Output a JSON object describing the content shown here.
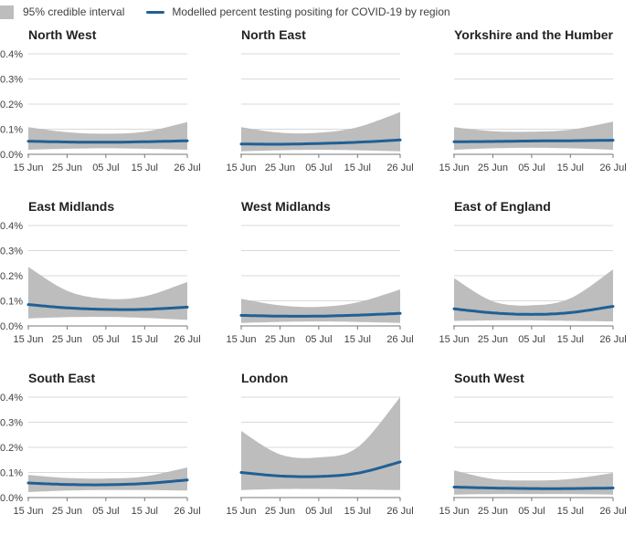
{
  "legend": {
    "band_label": "95% credible interval",
    "line_label": "Modelled percent testing positing for COVID-19 by region"
  },
  "colors": {
    "band": "#bdbdbd",
    "line": "#206095",
    "grid": "#d9d9d9",
    "axis": "#777777"
  },
  "chart_data": [
    {
      "type": "area",
      "title": "North West",
      "x_ticks": [
        "15 Jun",
        "25 Jun",
        "05 Jul",
        "15 Jul",
        "26 Jul"
      ],
      "y_ticks": [
        "0.0%",
        "0.1%",
        "0.2%",
        "0.3%",
        "0.4%"
      ],
      "ylim": [
        0,
        0.4
      ],
      "show_y_axis": true,
      "x": [
        0,
        10,
        20,
        30,
        41
      ],
      "estimate": [
        0.052,
        0.049,
        0.048,
        0.05,
        0.054
      ],
      "lower": [
        0.018,
        0.022,
        0.024,
        0.022,
        0.018
      ],
      "upper": [
        0.108,
        0.088,
        0.082,
        0.09,
        0.128
      ]
    },
    {
      "type": "area",
      "title": "North East",
      "x_ticks": [
        "15 Jun",
        "25 Jun",
        "05 Jul",
        "15 Jul",
        "26 Jul"
      ],
      "y_ticks": [],
      "ylim": [
        0,
        0.4
      ],
      "show_y_axis": false,
      "x": [
        0,
        10,
        20,
        30,
        41
      ],
      "estimate": [
        0.041,
        0.04,
        0.043,
        0.048,
        0.057
      ],
      "lower": [
        0.012,
        0.016,
        0.018,
        0.016,
        0.012
      ],
      "upper": [
        0.108,
        0.086,
        0.086,
        0.108,
        0.168
      ]
    },
    {
      "type": "area",
      "title": "Yorkshire and the Humber",
      "x_ticks": [
        "15 Jun",
        "25 Jun",
        "05 Jul",
        "15 Jul",
        "26 Jul"
      ],
      "y_ticks": [],
      "ylim": [
        0,
        0.4
      ],
      "show_y_axis": false,
      "x": [
        0,
        10,
        20,
        30,
        41
      ],
      "estimate": [
        0.05,
        0.051,
        0.053,
        0.054,
        0.056
      ],
      "lower": [
        0.018,
        0.024,
        0.026,
        0.024,
        0.018
      ],
      "upper": [
        0.108,
        0.092,
        0.09,
        0.098,
        0.13
      ]
    },
    {
      "type": "area",
      "title": "East Midlands",
      "x_ticks": [
        "15 Jun",
        "25 Jun",
        "05 Jul",
        "15 Jul",
        "26 Jul"
      ],
      "y_ticks": [
        "0.0%",
        "0.1%",
        "0.2%",
        "0.3%",
        "0.4%"
      ],
      "ylim": [
        0,
        0.4
      ],
      "show_y_axis": true,
      "x": [
        0,
        10,
        20,
        30,
        41
      ],
      "estimate": [
        0.085,
        0.072,
        0.066,
        0.066,
        0.075
      ],
      "lower": [
        0.03,
        0.035,
        0.036,
        0.032,
        0.024
      ],
      "upper": [
        0.235,
        0.14,
        0.108,
        0.118,
        0.175
      ]
    },
    {
      "type": "area",
      "title": "West Midlands",
      "x_ticks": [
        "15 Jun",
        "25 Jun",
        "05 Jul",
        "15 Jul",
        "26 Jul"
      ],
      "y_ticks": [],
      "ylim": [
        0,
        0.4
      ],
      "show_y_axis": false,
      "x": [
        0,
        10,
        20,
        30,
        41
      ],
      "estimate": [
        0.042,
        0.039,
        0.039,
        0.043,
        0.05
      ],
      "lower": [
        0.012,
        0.016,
        0.018,
        0.016,
        0.012
      ],
      "upper": [
        0.108,
        0.082,
        0.076,
        0.094,
        0.145
      ]
    },
    {
      "type": "area",
      "title": "East of England",
      "x_ticks": [
        "15 Jun",
        "25 Jun",
        "05 Jul",
        "15 Jul",
        "26 Jul"
      ],
      "y_ticks": [],
      "ylim": [
        0,
        0.4
      ],
      "show_y_axis": false,
      "x": [
        0,
        10,
        20,
        30,
        41
      ],
      "estimate": [
        0.068,
        0.052,
        0.046,
        0.053,
        0.078
      ],
      "lower": [
        0.02,
        0.022,
        0.022,
        0.02,
        0.018
      ],
      "upper": [
        0.19,
        0.098,
        0.082,
        0.11,
        0.225
      ]
    },
    {
      "type": "area",
      "title": "South East",
      "x_ticks": [
        "15 Jun",
        "25 Jun",
        "05 Jul",
        "15 Jul",
        "26 Jul"
      ],
      "y_ticks": [
        "0.0%",
        "0.1%",
        "0.2%",
        "0.3%",
        "0.4%"
      ],
      "ylim": [
        0,
        0.4
      ],
      "show_y_axis": true,
      "x": [
        0,
        10,
        20,
        30,
        41
      ],
      "estimate": [
        0.058,
        0.052,
        0.051,
        0.056,
        0.07
      ],
      "lower": [
        0.022,
        0.028,
        0.03,
        0.03,
        0.028
      ],
      "upper": [
        0.09,
        0.078,
        0.076,
        0.084,
        0.12
      ]
    },
    {
      "type": "area",
      "title": "London",
      "x_ticks": [
        "15 Jun",
        "25 Jun",
        "05 Jul",
        "15 Jul",
        "26 Jul"
      ],
      "y_ticks": [],
      "ylim": [
        0,
        0.4
      ],
      "show_y_axis": false,
      "x": [
        0,
        10,
        20,
        30,
        41
      ],
      "estimate": [
        0.1,
        0.086,
        0.084,
        0.097,
        0.142
      ],
      "lower": [
        0.03,
        0.034,
        0.034,
        0.032,
        0.03
      ],
      "upper": [
        0.265,
        0.172,
        0.16,
        0.2,
        0.4
      ]
    },
    {
      "type": "area",
      "title": "South West",
      "x_ticks": [
        "15 Jun",
        "25 Jun",
        "05 Jul",
        "15 Jul",
        "26 Jul"
      ],
      "y_ticks": [],
      "ylim": [
        0,
        0.4
      ],
      "show_y_axis": false,
      "x": [
        0,
        10,
        20,
        30,
        41
      ],
      "estimate": [
        0.042,
        0.038,
        0.036,
        0.036,
        0.038
      ],
      "lower": [
        0.012,
        0.014,
        0.014,
        0.014,
        0.012
      ],
      "upper": [
        0.108,
        0.074,
        0.068,
        0.074,
        0.098
      ]
    }
  ]
}
